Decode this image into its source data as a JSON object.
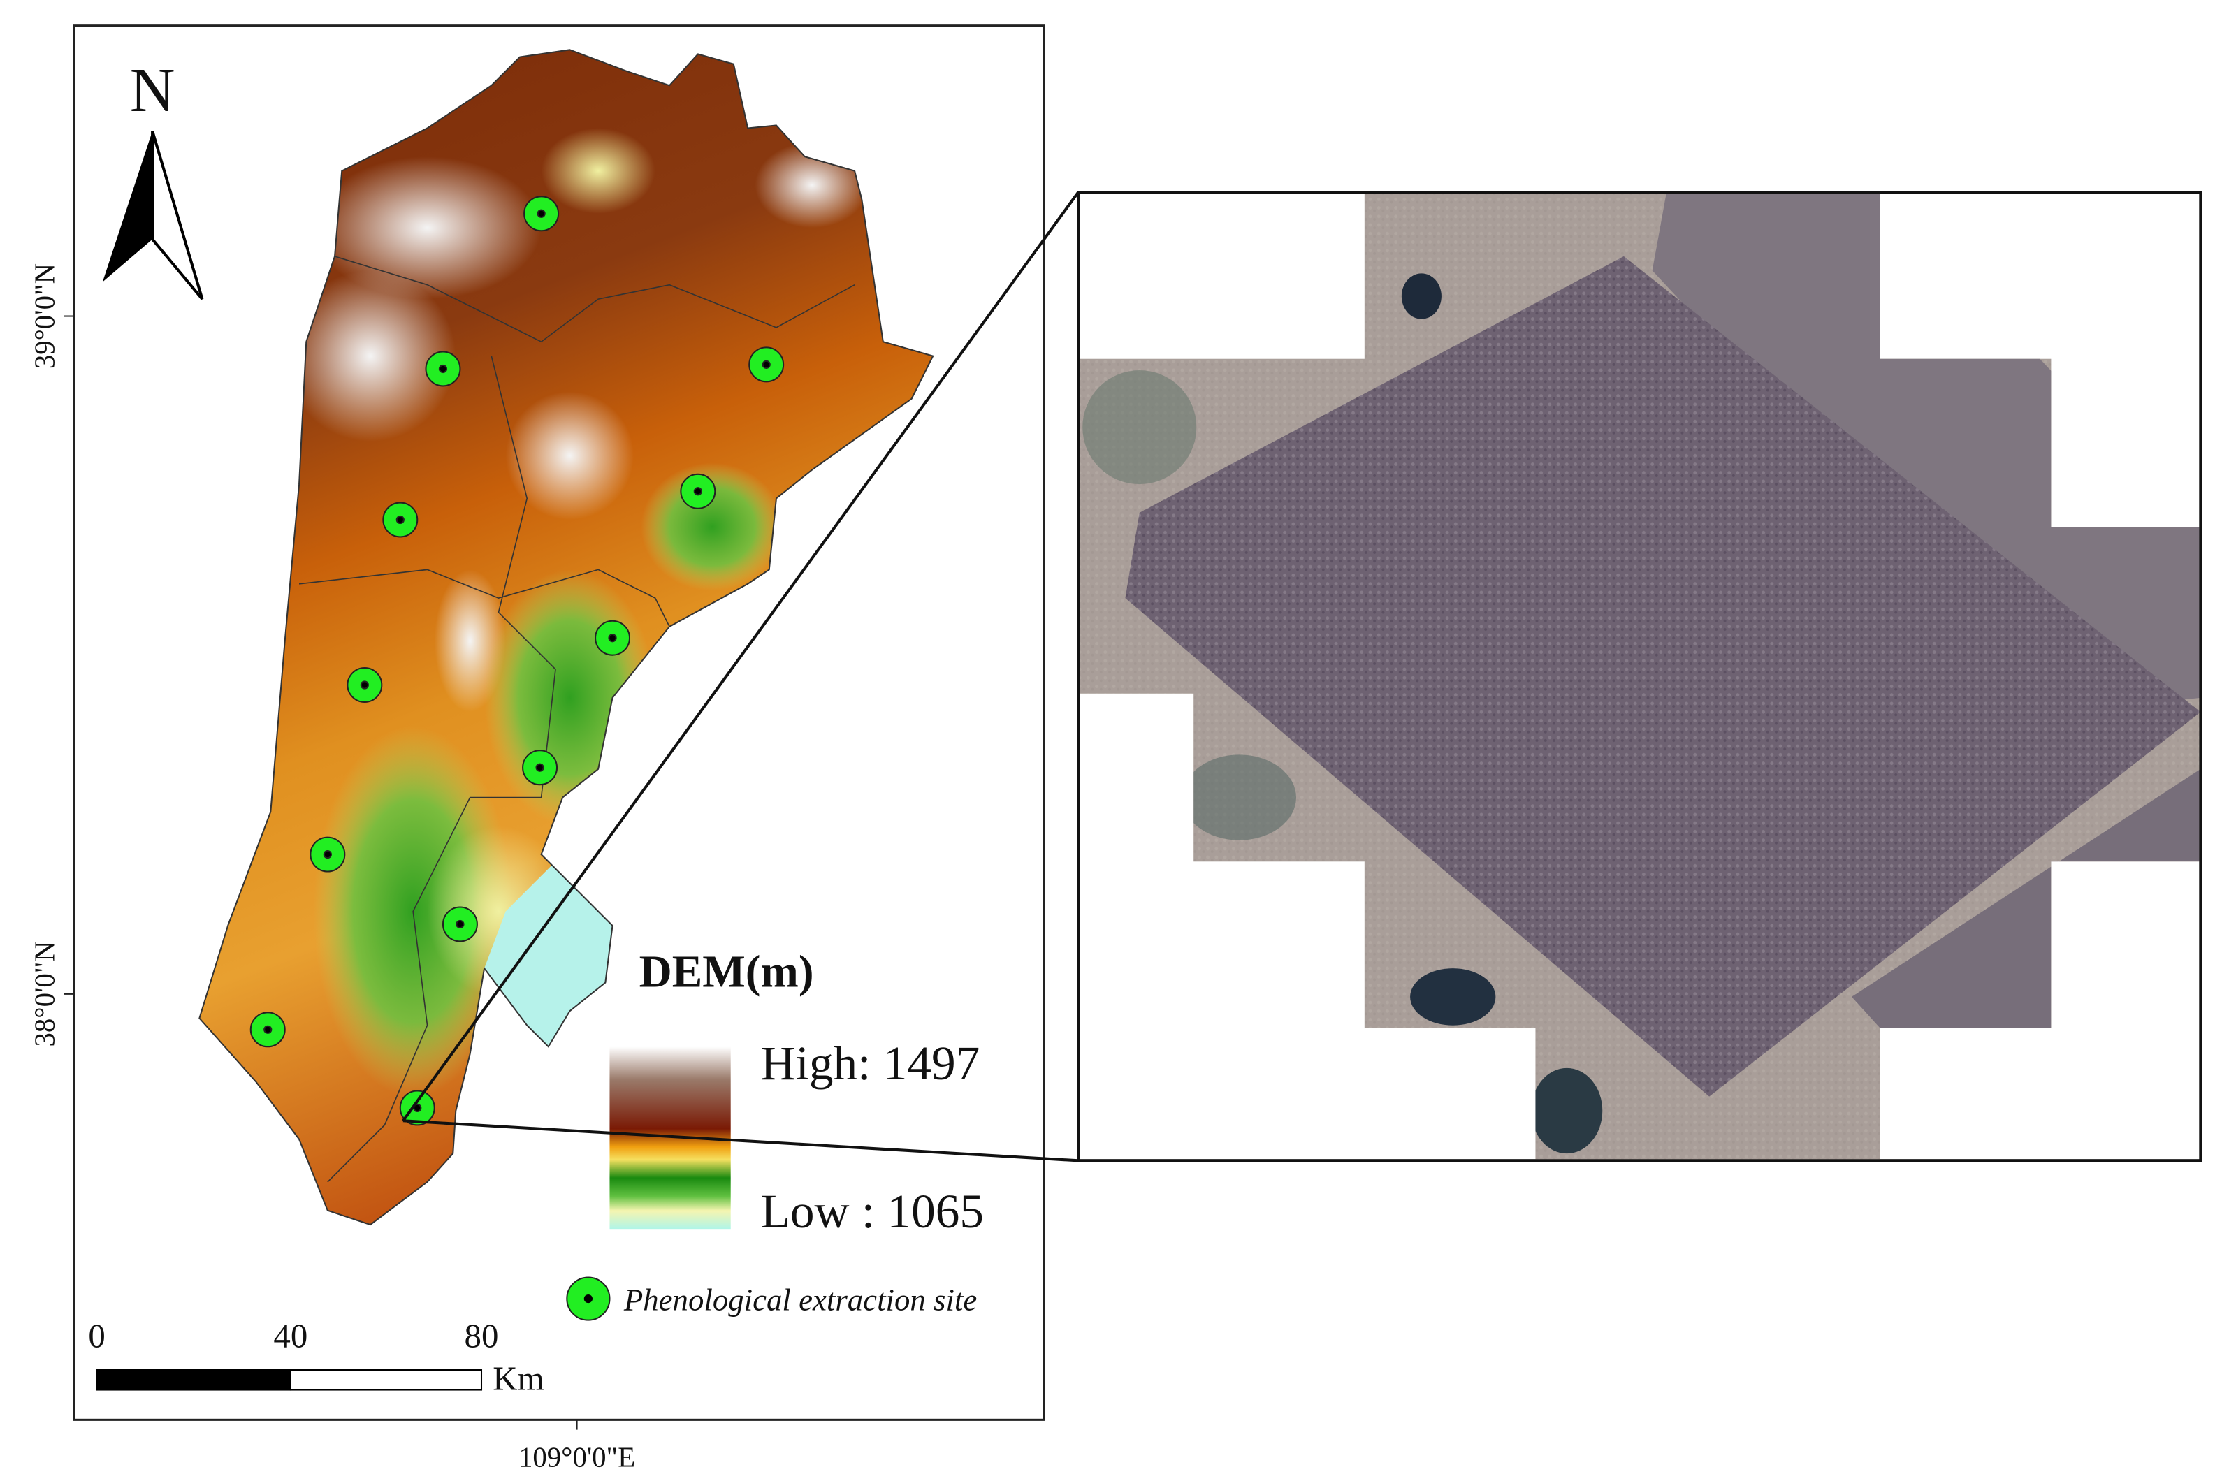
{
  "map": {
    "north_label": "N",
    "lat_labels": [
      "39°0'0\"N",
      "38°0'0\"N"
    ],
    "lon_labels": [
      "109°0'0\"E"
    ],
    "legend": {
      "title": "DEM(m)",
      "high": "High: 1497",
      "low": "Low : 1065",
      "site": "Phenological extraction site"
    },
    "scale_bar": {
      "ticks": [
        "0",
        "40",
        "80"
      ],
      "unit": "Km"
    }
  }
}
